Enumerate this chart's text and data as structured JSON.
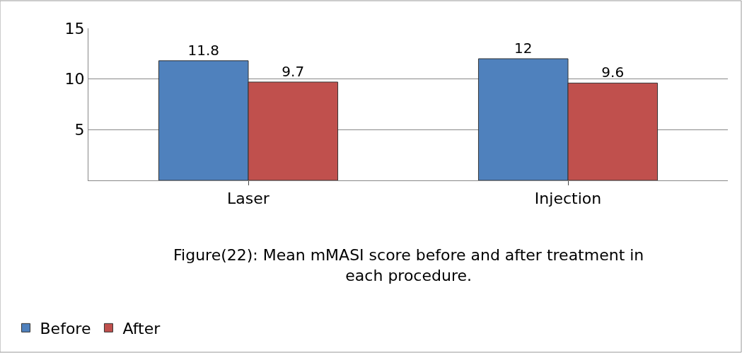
{
  "chart_data": {
    "type": "bar",
    "categories": [
      "Laser",
      "Injection"
    ],
    "series": [
      {
        "name": "Before",
        "color": "#4f81bd",
        "values": [
          11.8,
          12
        ]
      },
      {
        "name": "After",
        "color": "#c0504d",
        "values": [
          9.7,
          9.6
        ]
      }
    ],
    "ylim": [
      0,
      15
    ],
    "yticks": [
      5,
      10,
      15
    ],
    "grid": "y",
    "data_labels": true,
    "legend": "bottom left",
    "annotations": [
      "Figure(22): Mean mMASI score before and after treatment in each procedure."
    ]
  }
}
